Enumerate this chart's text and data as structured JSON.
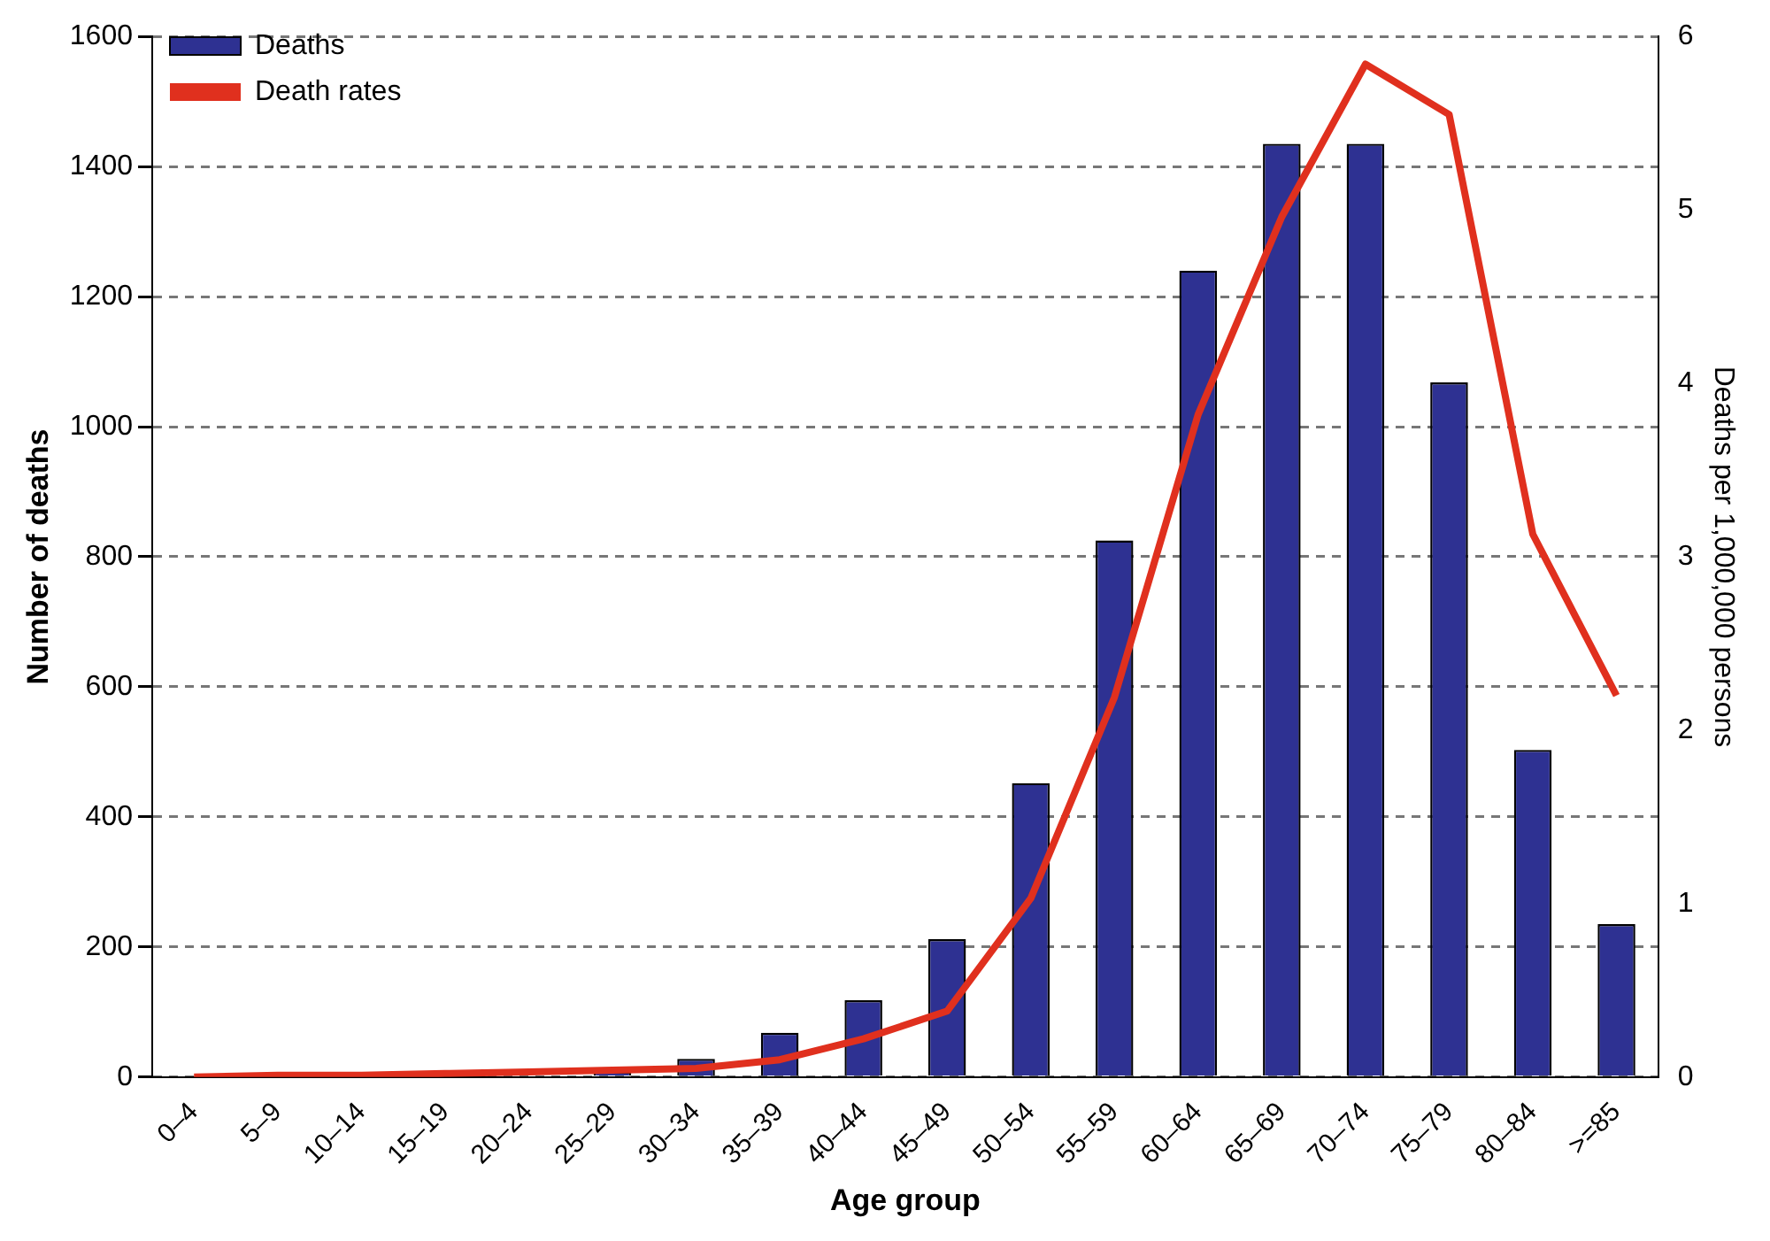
{
  "chart_data": {
    "type": "bar",
    "xlabel": "Age group",
    "ylabel": "Number of deaths",
    "y2label": "Deaths per 1,000,000 persons",
    "categories": [
      "0–4",
      "5–9",
      "10–14",
      "15–19",
      "20–24",
      "25–29",
      "30–34",
      "35–39",
      "40–44",
      "45–49",
      "50–54",
      "55–59",
      "60–64",
      "65–69",
      "70–74",
      "75–79",
      "80–84",
      ">=85"
    ],
    "series": [
      {
        "name": "Deaths",
        "color": "#2e3192",
        "values": [
          0,
          0,
          0,
          0,
          0,
          8,
          28,
          68,
          118,
          212,
          452,
          825,
          1240,
          1435,
          1435,
          1068,
          503,
          235
        ]
      },
      {
        "name": "Death rates",
        "type": "line",
        "axis": "y2",
        "color": "#e0301e",
        "marker": "none",
        "values": [
          0,
          0.01,
          0.01,
          0.02,
          0.03,
          0.04,
          0.05,
          0.1,
          0.22,
          0.38,
          1.03,
          2.19,
          3.82,
          4.96,
          5.84,
          5.55,
          3.13,
          2.2
        ]
      }
    ],
    "ylim": [
      0,
      1600
    ],
    "yticks": [
      0,
      200,
      400,
      600,
      800,
      1000,
      1200,
      1400,
      1600
    ],
    "y2lim": [
      0,
      6
    ],
    "y2ticks": [
      0,
      1,
      2,
      3,
      4,
      5,
      6
    ],
    "grid": "y",
    "legend": "top left"
  }
}
